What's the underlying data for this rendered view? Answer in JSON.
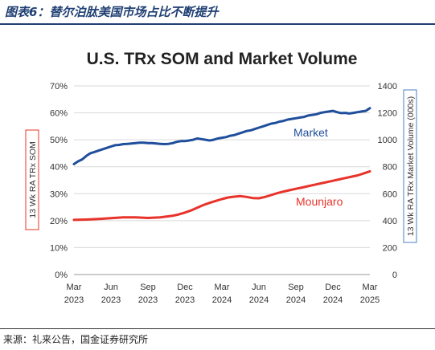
{
  "caption": "图表6：替尔泊肽美国市场占比不断提升",
  "source": "来源：礼来公告，国金证券研究所",
  "chart_data": {
    "type": "line",
    "title": "U.S. TRx SOM and Market Volume",
    "y_left_label": "13 Wk RA TRx SOM",
    "y_right_label": "13 Wk RA TRx Market Volume (000s)",
    "x_ticks": [
      "Mar\n2023",
      "Jun\n2023",
      "Sep\n2023",
      "Dec\n2023",
      "Mar\n2024",
      "Jun\n2024",
      "Sep\n2024",
      "Dec\n2024",
      "Mar\n2025"
    ],
    "y_left_ticks": [
      "0%",
      "10%",
      "20%",
      "30%",
      "40%",
      "50%",
      "60%",
      "70%"
    ],
    "y_left_range": [
      0,
      70
    ],
    "y_right_ticks": [
      "0",
      "200",
      "400",
      "600",
      "800",
      "1000",
      "1200",
      "1400"
    ],
    "y_right_range": [
      0,
      1400
    ],
    "series": [
      {
        "name": "Market",
        "axis": "right",
        "color": "#1f4e9c",
        "x": [
          0,
          0.33,
          0.67,
          1,
          1.33,
          1.67,
          2,
          2.33,
          2.67,
          3,
          3.33,
          3.67,
          4,
          4.33,
          4.67,
          5,
          5.33,
          5.67,
          6,
          6.33,
          6.67,
          7,
          7.33,
          7.67,
          8,
          8.33,
          8.67,
          9,
          9.33,
          9.67,
          10,
          10.33,
          10.67,
          11,
          11.33,
          11.67,
          12,
          12.33,
          12.67,
          13,
          13.33,
          13.67,
          14,
          14.33,
          14.67,
          15,
          15.33,
          15.67,
          16,
          16.33,
          16.67,
          17,
          17.33,
          17.67,
          18,
          18.33,
          18.67,
          19,
          19.33,
          19.67,
          20,
          20.33,
          20.67,
          21,
          21.33,
          21.67,
          22,
          22.33,
          22.67,
          23,
          23.33,
          23.67,
          24
        ],
        "values": [
          820,
          840,
          855,
          880,
          900,
          910,
          920,
          930,
          940,
          950,
          960,
          962,
          968,
          970,
          972,
          975,
          978,
          978,
          975,
          975,
          972,
          970,
          968,
          970,
          975,
          985,
          990,
          990,
          995,
          1000,
          1010,
          1005,
          1000,
          995,
          1000,
          1010,
          1015,
          1020,
          1030,
          1035,
          1045,
          1055,
          1065,
          1070,
          1080,
          1090,
          1100,
          1110,
          1120,
          1125,
          1135,
          1140,
          1150,
          1155,
          1160,
          1165,
          1170,
          1180,
          1185,
          1190,
          1200,
          1205,
          1210,
          1215,
          1205,
          1198,
          1200,
          1195,
          1200,
          1205,
          1210,
          1215,
          1235
        ]
      },
      {
        "name": "Mounjaro",
        "axis": "left",
        "color": "#e8332a",
        "x": [
          0,
          1,
          2,
          3,
          4,
          5,
          6,
          7,
          8,
          8.5,
          9,
          9.5,
          10,
          10.5,
          11,
          11.5,
          12,
          12.5,
          13,
          13.5,
          14,
          14.5,
          15,
          15.5,
          16,
          16.5,
          17,
          17.5,
          18,
          18.5,
          19,
          19.5,
          20,
          20.5,
          21,
          21.5,
          22,
          22.5,
          23,
          23.5,
          24
        ],
        "values": [
          20.3,
          20.4,
          20.6,
          20.9,
          21.2,
          21.2,
          21.0,
          21.2,
          21.8,
          22.3,
          23.0,
          23.8,
          24.8,
          25.8,
          26.6,
          27.3,
          28.0,
          28.6,
          28.9,
          29.1,
          28.8,
          28.4,
          28.3,
          28.8,
          29.5,
          30.2,
          30.8,
          31.3,
          31.8,
          32.3,
          32.8,
          33.3,
          33.8,
          34.3,
          34.8,
          35.3,
          35.8,
          36.3,
          36.8,
          37.5,
          38.3
        ]
      }
    ],
    "annotations": [
      {
        "text": "Market",
        "series": "Market"
      },
      {
        "text": "Mounjaro",
        "series": "Mounjaro"
      }
    ]
  }
}
